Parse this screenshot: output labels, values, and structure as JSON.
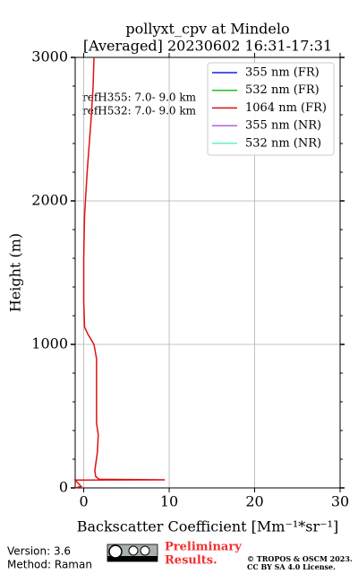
{
  "chart_data": {
    "type": "line",
    "title": [
      "pollyxt_cpv at Mindelo",
      "[Averaged] 20230602 16:31-17:31"
    ],
    "x_label": "Backscatter Coefficient [Mm⁻¹*sr⁻¹]",
    "y_label": "Height (m)",
    "annotations": [
      "refH355:  7.0- 9.0 km",
      "refH532:  7.0- 9.0 km"
    ],
    "y": [
      0,
      10,
      55,
      56,
      60,
      80,
      120,
      250,
      370,
      450,
      700,
      900,
      1000,
      1070,
      1120,
      1300,
      1600,
      1900,
      2200,
      2600,
      2800,
      3000
    ],
    "series": [
      {
        "name": "355 nm (FR)",
        "color": "#1f1fe0",
        "values": [
          null,
          null,
          null,
          null,
          null,
          null,
          null,
          null,
          null,
          null,
          null,
          null,
          null,
          null,
          null,
          null,
          null,
          null,
          null,
          null,
          null,
          null
        ]
      },
      {
        "name": "532 nm (FR)",
        "color": "#1ec21e",
        "values": [
          null,
          null,
          null,
          null,
          null,
          null,
          null,
          null,
          null,
          null,
          null,
          null,
          null,
          null,
          null,
          null,
          null,
          null,
          null,
          null,
          null,
          null
        ]
      },
      {
        "name": "1064 nm (FR)",
        "color": "#e01010",
        "values": [
          -1.0,
          -0.3,
          -1.0,
          9.5,
          1.8,
          1.4,
          1.3,
          1.6,
          1.7,
          1.5,
          1.5,
          1.5,
          1.2,
          0.5,
          0.1,
          0.0,
          0.0,
          0.1,
          0.4,
          0.9,
          1.1,
          1.2
        ]
      },
      {
        "name": "355 nm (NR)",
        "color": "#b060e0",
        "values": [
          null,
          null,
          null,
          null,
          null,
          null,
          null,
          null,
          null,
          null,
          null,
          null,
          null,
          null,
          null,
          null,
          null,
          null,
          null,
          null,
          null,
          null
        ]
      },
      {
        "name": "532 nm (NR)",
        "color": "#60f0d0",
        "values": [
          null,
          null,
          null,
          null,
          null,
          null,
          null,
          null,
          null,
          null,
          null,
          null,
          null,
          null,
          null,
          null,
          null,
          null,
          null,
          null,
          null,
          null
        ]
      }
    ],
    "xlim": [
      -1,
      30
    ],
    "xticks": [
      0,
      10,
      20,
      30
    ],
    "ylim": [
      0,
      3000
    ],
    "yticks": [
      0,
      1000,
      2000,
      3000
    ],
    "grid": true,
    "legend": "upper right"
  },
  "footer": {
    "version": "Version: 3.6",
    "method": "Method: Raman",
    "preliminary": [
      "Preliminary",
      "Results."
    ],
    "copyright": [
      "© TROPOS & OSCM 2023.",
      "CC BY SA 4.0 License."
    ]
  }
}
